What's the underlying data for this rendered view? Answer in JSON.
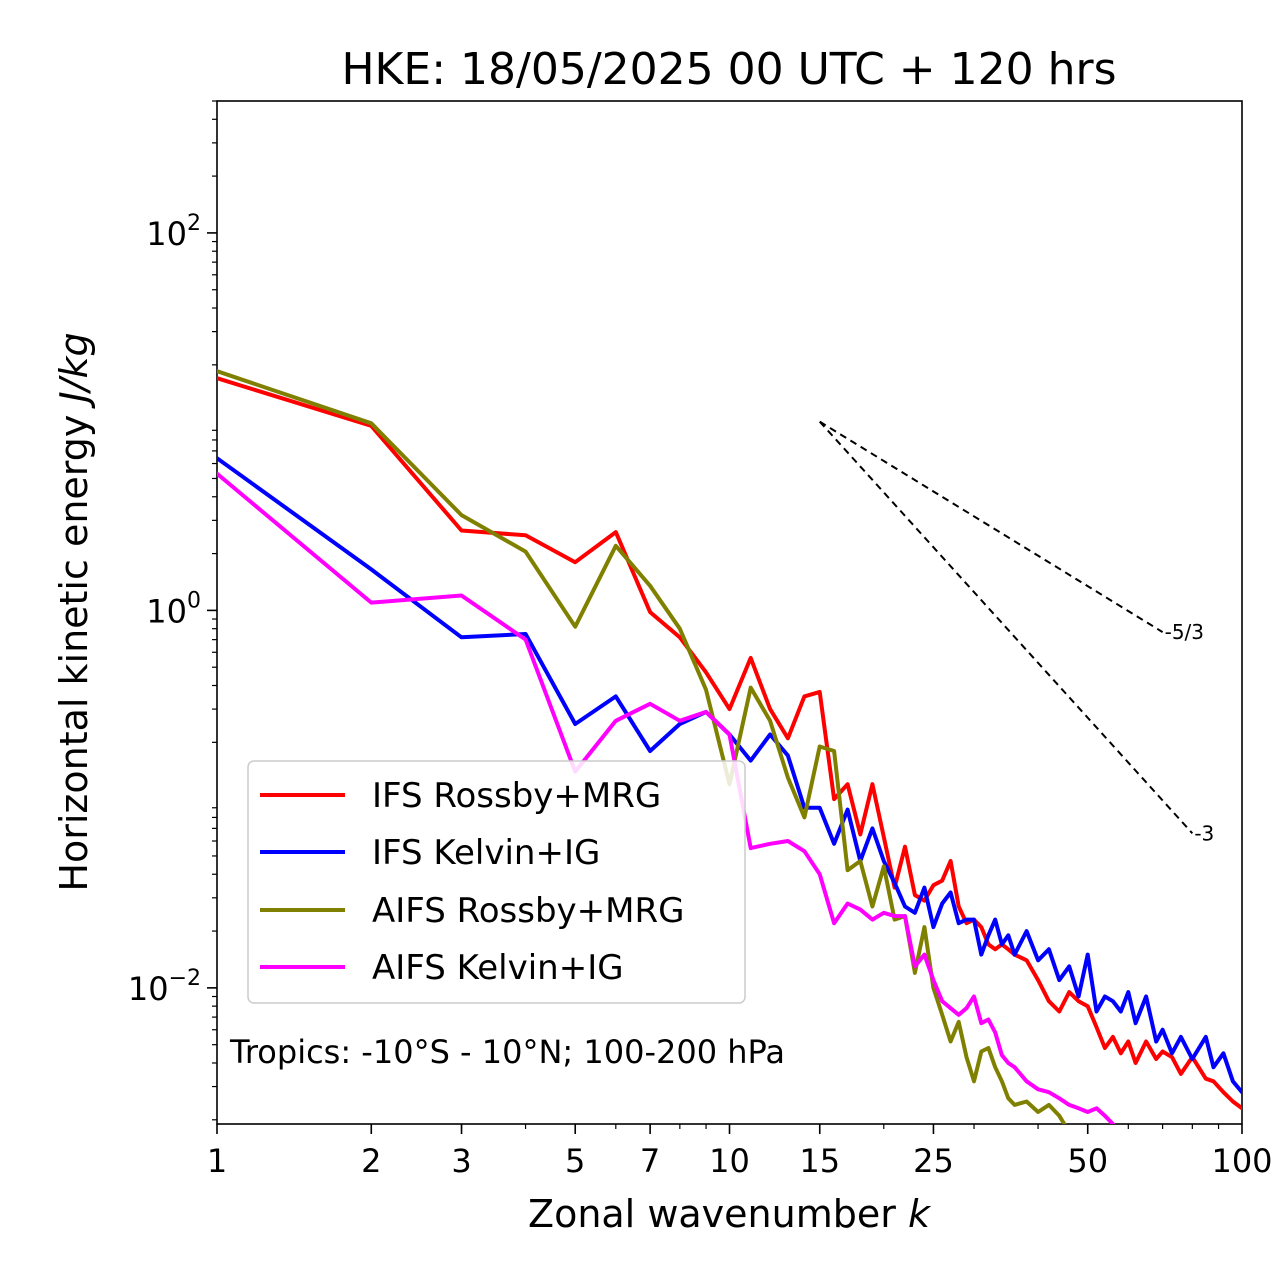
{
  "chart_data": {
    "type": "line",
    "title": "HKE: 18/05/2025 00 UTC + 120 hrs",
    "xlabel": "Zonal wavenumber",
    "xlabel_var": "k",
    "ylabel": "Horizontal kinetic energy",
    "ylabel_units": "J/kg",
    "xscale": "log",
    "yscale": "log",
    "xlim": [
      1,
      100
    ],
    "ylim": [
      0.0019,
      500
    ],
    "x_ticks": [
      1,
      2,
      3,
      5,
      7,
      10,
      15,
      25,
      50,
      100
    ],
    "y_ticks": [
      {
        "value": 0.01,
        "mantissa": "10",
        "exp": "−2"
      },
      {
        "value": 1,
        "mantissa": "10",
        "exp": "0"
      },
      {
        "value": 100,
        "mantissa": "10",
        "exp": "2"
      }
    ],
    "legend_position": "lower-left",
    "annotation": "Tropics: -10°S - 10°N; 100-200 hPa",
    "reference_slopes": [
      {
        "label": "-5/3",
        "slope": -1.6667,
        "x_start": 15,
        "x_end": 70,
        "y_start": 10.0
      },
      {
        "label": "-3",
        "slope": -3,
        "x_start": 15,
        "x_end": 80,
        "y_start": 10.0
      }
    ],
    "series": [
      {
        "name": "IFS Rossby+MRG",
        "color": "#ff0000",
        "points": [
          [
            1,
            17
          ],
          [
            2,
            9.5
          ],
          [
            3,
            2.65
          ],
          [
            4,
            2.5
          ],
          [
            5,
            1.8
          ],
          [
            6,
            2.6
          ],
          [
            7,
            0.98
          ],
          [
            8,
            0.72
          ],
          [
            9,
            0.47
          ],
          [
            10,
            0.3
          ],
          [
            11,
            0.56
          ],
          [
            12,
            0.3
          ],
          [
            13,
            0.21
          ],
          [
            14,
            0.35
          ],
          [
            15,
            0.37
          ],
          [
            16,
            0.1
          ],
          [
            17,
            0.12
          ],
          [
            18,
            0.065
          ],
          [
            19,
            0.12
          ],
          [
            20,
            0.063
          ],
          [
            21,
            0.034
          ],
          [
            22,
            0.056
          ],
          [
            23,
            0.031
          ],
          [
            24,
            0.029
          ],
          [
            25,
            0.035
          ],
          [
            26,
            0.037
          ],
          [
            27,
            0.047
          ],
          [
            28,
            0.027
          ],
          [
            29,
            0.022
          ],
          [
            30,
            0.023
          ],
          [
            31,
            0.021
          ],
          [
            32,
            0.017
          ],
          [
            33,
            0.016
          ],
          [
            34,
            0.017
          ],
          [
            35,
            0.016
          ],
          [
            36,
            0.015
          ],
          [
            38,
            0.014
          ],
          [
            40,
            0.011
          ],
          [
            42,
            0.0085
          ],
          [
            44,
            0.0075
          ],
          [
            46,
            0.0095
          ],
          [
            48,
            0.0085
          ],
          [
            50,
            0.008
          ],
          [
            52,
            0.0062
          ],
          [
            54,
            0.0048
          ],
          [
            56,
            0.0055
          ],
          [
            58,
            0.0045
          ],
          [
            60,
            0.0052
          ],
          [
            62,
            0.004
          ],
          [
            65,
            0.0052
          ],
          [
            68,
            0.0042
          ],
          [
            70,
            0.0046
          ],
          [
            73,
            0.0043
          ],
          [
            76,
            0.0035
          ],
          [
            80,
            0.0043
          ],
          [
            85,
            0.0033
          ],
          [
            88,
            0.0032
          ],
          [
            92,
            0.0028
          ],
          [
            96,
            0.0025
          ],
          [
            100,
            0.0023
          ]
        ]
      },
      {
        "name": "IFS Kelvin+IG",
        "color": "#0000ff",
        "points": [
          [
            1,
            6.4
          ],
          [
            2,
            1.65
          ],
          [
            3,
            0.72
          ],
          [
            4,
            0.75
          ],
          [
            5,
            0.25
          ],
          [
            6,
            0.35
          ],
          [
            7,
            0.18
          ],
          [
            8,
            0.25
          ],
          [
            9,
            0.29
          ],
          [
            10,
            0.22
          ],
          [
            11,
            0.16
          ],
          [
            12,
            0.22
          ],
          [
            13,
            0.17
          ],
          [
            14,
            0.09
          ],
          [
            15,
            0.09
          ],
          [
            16,
            0.058
          ],
          [
            17,
            0.088
          ],
          [
            18,
            0.047
          ],
          [
            19,
            0.07
          ],
          [
            20,
            0.047
          ],
          [
            21,
            0.036
          ],
          [
            22,
            0.027
          ],
          [
            23,
            0.025
          ],
          [
            24,
            0.034
          ],
          [
            25,
            0.021
          ],
          [
            26,
            0.028
          ],
          [
            27,
            0.032
          ],
          [
            28,
            0.022
          ],
          [
            29,
            0.023
          ],
          [
            30,
            0.023
          ],
          [
            31,
            0.015
          ],
          [
            32,
            0.019
          ],
          [
            33,
            0.023
          ],
          [
            34,
            0.017
          ],
          [
            35,
            0.019
          ],
          [
            36,
            0.015
          ],
          [
            38,
            0.02
          ],
          [
            40,
            0.014
          ],
          [
            42,
            0.016
          ],
          [
            44,
            0.011
          ],
          [
            46,
            0.013
          ],
          [
            48,
            0.009
          ],
          [
            50,
            0.015
          ],
          [
            52,
            0.0075
          ],
          [
            54,
            0.009
          ],
          [
            56,
            0.0085
          ],
          [
            58,
            0.0075
          ],
          [
            60,
            0.0095
          ],
          [
            62,
            0.0065
          ],
          [
            65,
            0.009
          ],
          [
            68,
            0.0052
          ],
          [
            70,
            0.006
          ],
          [
            73,
            0.0045
          ],
          [
            76,
            0.0055
          ],
          [
            80,
            0.0042
          ],
          [
            85,
            0.0055
          ],
          [
            88,
            0.0038
          ],
          [
            92,
            0.0045
          ],
          [
            96,
            0.0032
          ],
          [
            100,
            0.0028
          ]
        ]
      },
      {
        "name": "AIFS Rossby+MRG",
        "color": "#808000",
        "points": [
          [
            1,
            18.5
          ],
          [
            2,
            9.8
          ],
          [
            3,
            3.2
          ],
          [
            4,
            2.05
          ],
          [
            5,
            0.82
          ],
          [
            6,
            2.2
          ],
          [
            7,
            1.35
          ],
          [
            8,
            0.8
          ],
          [
            9,
            0.38
          ],
          [
            10,
            0.12
          ],
          [
            11,
            0.39
          ],
          [
            12,
            0.26
          ],
          [
            13,
            0.13
          ],
          [
            14,
            0.08
          ],
          [
            15,
            0.19
          ],
          [
            16,
            0.18
          ],
          [
            17,
            0.042
          ],
          [
            18,
            0.047
          ],
          [
            19,
            0.027
          ],
          [
            20,
            0.044
          ],
          [
            21,
            0.023
          ],
          [
            22,
            0.024
          ],
          [
            23,
            0.012
          ],
          [
            24,
            0.021
          ],
          [
            25,
            0.01
          ],
          [
            26,
            0.0072
          ],
          [
            27,
            0.0052
          ],
          [
            28,
            0.0066
          ],
          [
            29,
            0.0043
          ],
          [
            30,
            0.0032
          ],
          [
            31,
            0.0046
          ],
          [
            32,
            0.0048
          ],
          [
            33,
            0.0038
          ],
          [
            34,
            0.0032
          ],
          [
            35,
            0.0026
          ],
          [
            36,
            0.0024
          ],
          [
            38,
            0.0025
          ],
          [
            40,
            0.0022
          ],
          [
            42,
            0.0024
          ],
          [
            44,
            0.0021
          ],
          [
            45,
            0.0019
          ]
        ]
      },
      {
        "name": "AIFS Kelvin+IG",
        "color": "#ff00ff",
        "points": [
          [
            1,
            5.3
          ],
          [
            2,
            1.1
          ],
          [
            3,
            1.2
          ],
          [
            4,
            0.7
          ],
          [
            5,
            0.14
          ],
          [
            6,
            0.26
          ],
          [
            7,
            0.32
          ],
          [
            8,
            0.26
          ],
          [
            9,
            0.29
          ],
          [
            10,
            0.22
          ],
          [
            11,
            0.055
          ],
          [
            12,
            0.058
          ],
          [
            13,
            0.06
          ],
          [
            14,
            0.053
          ],
          [
            15,
            0.04
          ],
          [
            16,
            0.022
          ],
          [
            17,
            0.028
          ],
          [
            18,
            0.026
          ],
          [
            19,
            0.023
          ],
          [
            20,
            0.025
          ],
          [
            21,
            0.024
          ],
          [
            22,
            0.024
          ],
          [
            23,
            0.013
          ],
          [
            24,
            0.015
          ],
          [
            25,
            0.011
          ],
          [
            26,
            0.0085
          ],
          [
            27,
            0.0078
          ],
          [
            28,
            0.0072
          ],
          [
            29,
            0.0078
          ],
          [
            30,
            0.009
          ],
          [
            31,
            0.0065
          ],
          [
            32,
            0.0068
          ],
          [
            33,
            0.0058
          ],
          [
            34,
            0.0044
          ],
          [
            35,
            0.004
          ],
          [
            36,
            0.0038
          ],
          [
            38,
            0.0032
          ],
          [
            40,
            0.0029
          ],
          [
            42,
            0.0028
          ],
          [
            44,
            0.0026
          ],
          [
            46,
            0.0024
          ],
          [
            48,
            0.0023
          ],
          [
            50,
            0.0022
          ],
          [
            52,
            0.0023
          ],
          [
            54,
            0.0021
          ],
          [
            56,
            0.0019
          ]
        ]
      }
    ]
  }
}
